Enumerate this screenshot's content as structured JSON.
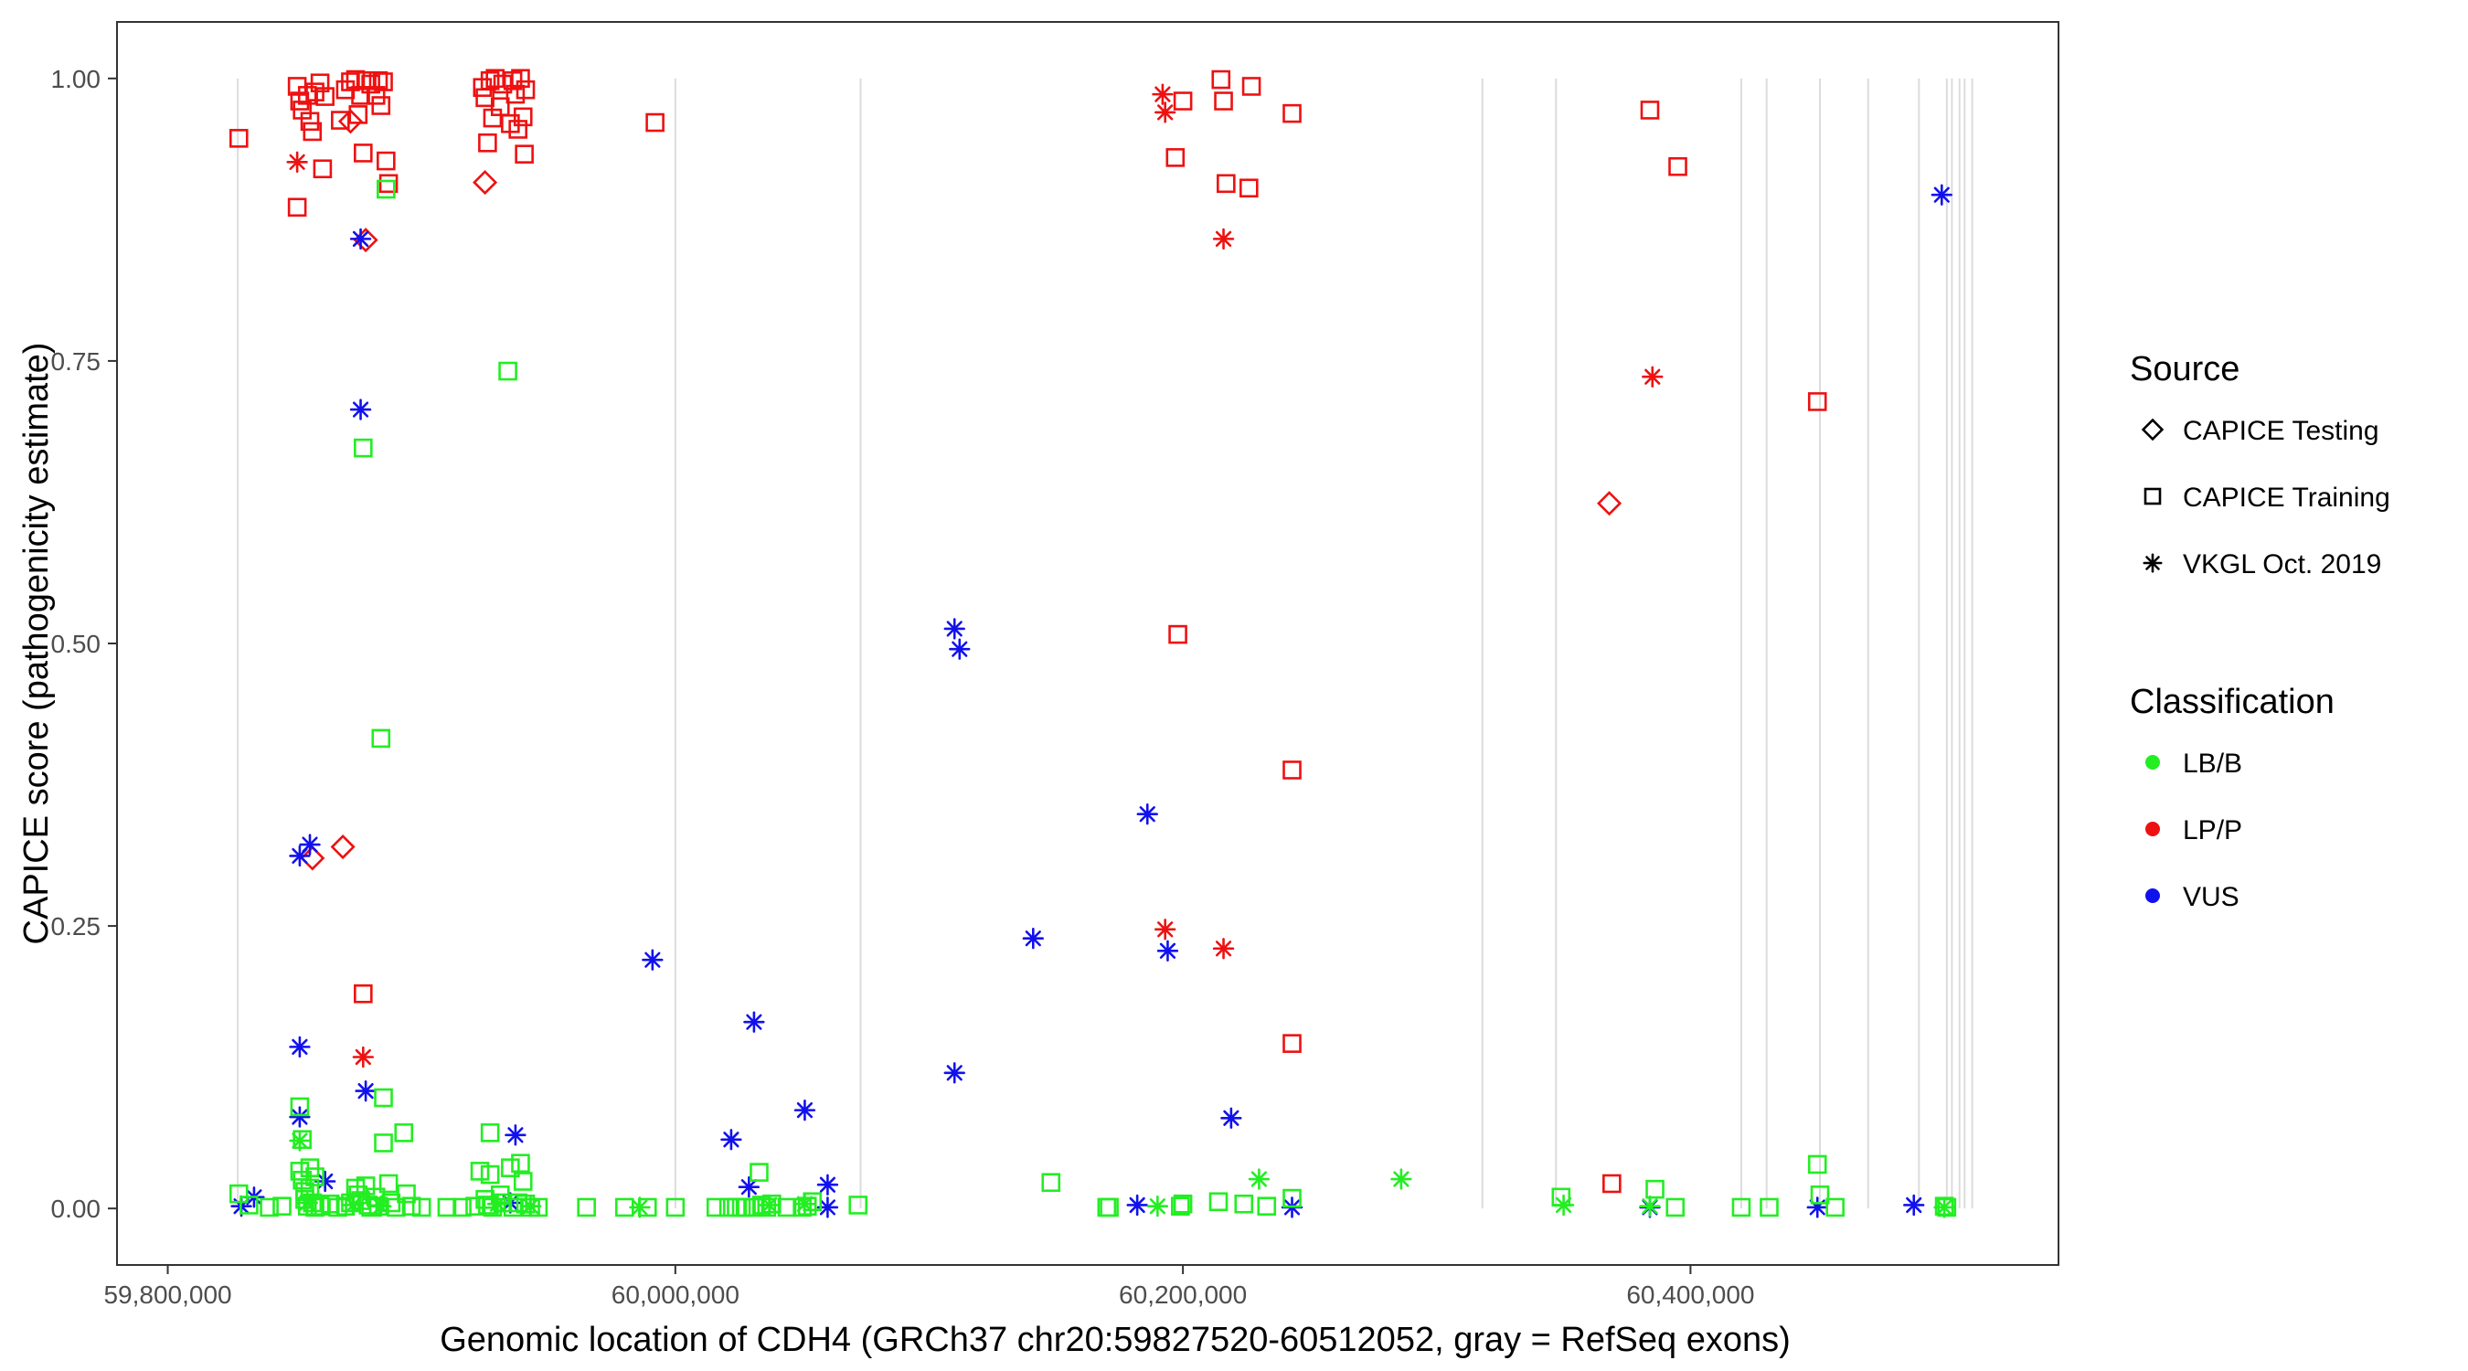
{
  "colors": {
    "LB/B": "#22ee22",
    "LP/P": "#ee1111",
    "VUS": "#1111ee",
    "exon_line": "#dcdcdc",
    "panel_border": "#333333"
  },
  "chart_data": {
    "type": "scatter",
    "xlabel": "Genomic location of CDH4 (GRCh37 chr20:59827520-60512052, gray = RefSeq exons)",
    "ylabel": "CAPICE score (pathogenicity estimate)",
    "xlim": [
      59780000,
      60545000
    ],
    "ylim": [
      -0.05,
      1.05
    ],
    "x_ticks": [
      59800000,
      60000000,
      60200000,
      60400000
    ],
    "x_tick_labels": [
      "59,800,000",
      "60,000,000",
      "60,200,000",
      "60,400,000"
    ],
    "y_ticks": [
      0.0,
      0.25,
      0.5,
      0.75,
      1.0
    ],
    "y_tick_labels": [
      "0.00",
      "0.25",
      "0.50",
      "0.75",
      "1.00"
    ],
    "grid": false,
    "exons": [
      59827600,
      60000000,
      60073000,
      60318000,
      60347000,
      60420000,
      60430000,
      60451000,
      60470000,
      60490000,
      60501000,
      60503000,
      60506000,
      60508000,
      60511000
    ],
    "legend": {
      "source_title": "Source",
      "classification_title": "Classification",
      "position": "right",
      "sources": [
        {
          "key": "testing",
          "label": "CAPICE Testing",
          "shape": "diamond"
        },
        {
          "key": "training",
          "label": "CAPICE Training",
          "shape": "square"
        },
        {
          "key": "vkgl",
          "label": "VKGL Oct. 2019",
          "shape": "asterisk"
        }
      ],
      "classes": [
        {
          "key": "LB/B",
          "label": "LB/B"
        },
        {
          "key": "LP/P",
          "label": "LP/P"
        },
        {
          "key": "VUS",
          "label": "VUS"
        }
      ]
    },
    "series": [
      {
        "source": "training",
        "class": "LP/P",
        "points": [
          [
            59828000,
            0.947
          ],
          [
            59851000,
            0.993
          ],
          [
            59852000,
            0.98
          ],
          [
            59853000,
            0.972
          ],
          [
            59851000,
            0.886
          ],
          [
            59855000,
            0.985
          ],
          [
            59856000,
            0.962
          ],
          [
            59857000,
            0.953
          ],
          [
            59858000,
            0.988
          ],
          [
            59860000,
            0.996
          ],
          [
            59861000,
            0.92
          ],
          [
            59862000,
            0.984
          ],
          [
            59868000,
            0.963
          ],
          [
            59870000,
            0.99
          ],
          [
            59872000,
            0.997
          ],
          [
            59874000,
            0.999
          ],
          [
            59875000,
            0.968
          ],
          [
            59876000,
            0.985
          ],
          [
            59877000,
            0.934
          ],
          [
            59878000,
            0.998
          ],
          [
            59880000,
            0.995
          ],
          [
            59882000,
            0.985
          ],
          [
            59883000,
            0.998
          ],
          [
            59884000,
            0.976
          ],
          [
            59885000,
            0.997
          ],
          [
            59886000,
            0.927
          ],
          [
            59887000,
            0.907
          ],
          [
            59877000,
            0.19
          ],
          [
            59924000,
            0.992
          ],
          [
            59925000,
            0.983
          ],
          [
            59926000,
            0.943
          ],
          [
            59927000,
            0.998
          ],
          [
            59928000,
            0.965
          ],
          [
            59929000,
            1.0
          ],
          [
            59931000,
            0.975
          ],
          [
            59932000,
            0.995
          ],
          [
            59935000,
            0.96
          ],
          [
            59936000,
            0.998
          ],
          [
            59937000,
            0.986
          ],
          [
            59938000,
            0.955
          ],
          [
            59939000,
            1.0
          ],
          [
            59940000,
            0.966
          ],
          [
            59941000,
            0.99
          ],
          [
            59940500,
            0.933
          ],
          [
            59992000,
            0.961
          ],
          [
            60197000,
            0.93
          ],
          [
            60200000,
            0.98
          ],
          [
            60215000,
            0.999
          ],
          [
            60216000,
            0.98
          ],
          [
            60217000,
            0.907
          ],
          [
            60227000,
            0.993
          ],
          [
            60226000,
            0.903
          ],
          [
            60243000,
            0.969
          ],
          [
            60198000,
            0.508
          ],
          [
            60243000,
            0.388
          ],
          [
            60243000,
            0.146
          ],
          [
            60369000,
            0.022
          ],
          [
            60384000,
            0.972
          ],
          [
            60395000,
            0.922
          ],
          [
            60450000,
            0.714
          ]
        ]
      },
      {
        "source": "testing",
        "class": "LP/P",
        "points": [
          [
            59872000,
            0.962
          ],
          [
            59878000,
            0.857
          ],
          [
            59925000,
            0.908
          ],
          [
            59869000,
            0.32
          ],
          [
            59857000,
            0.31
          ],
          [
            60368000,
            0.624
          ]
        ]
      },
      {
        "source": "vkgl",
        "class": "LP/P",
        "points": [
          [
            59851000,
            0.926
          ],
          [
            60192000,
            0.986
          ],
          [
            60193000,
            0.97
          ],
          [
            60216000,
            0.858
          ],
          [
            59877000,
            0.134
          ],
          [
            60193000,
            0.247
          ],
          [
            60216000,
            0.23
          ],
          [
            60385000,
            0.736
          ]
        ]
      },
      {
        "source": "vkgl",
        "class": "VUS",
        "points": [
          [
            59876000,
            0.858
          ],
          [
            59876000,
            0.707
          ],
          [
            59852000,
            0.312
          ],
          [
            59856000,
            0.322
          ],
          [
            59852000,
            0.143
          ],
          [
            59852000,
            0.081
          ],
          [
            59878000,
            0.104
          ],
          [
            59862000,
            0.024
          ],
          [
            59834000,
            0.01
          ],
          [
            59829000,
            0.002
          ],
          [
            59937000,
            0.065
          ],
          [
            59935000,
            0.005
          ],
          [
            59991000,
            0.22
          ],
          [
            60031000,
            0.165
          ],
          [
            60022000,
            0.061
          ],
          [
            60029000,
            0.019
          ],
          [
            60051000,
            0.087
          ],
          [
            60060000,
            0.021
          ],
          [
            60060000,
            0.001
          ],
          [
            60110000,
            0.513
          ],
          [
            60112000,
            0.495
          ],
          [
            60110000,
            0.12
          ],
          [
            60141000,
            0.239
          ],
          [
            60186000,
            0.349
          ],
          [
            60194000,
            0.228
          ],
          [
            60219000,
            0.08
          ],
          [
            60182000,
            0.003
          ],
          [
            60243000,
            0.001
          ],
          [
            60384000,
            0.001
          ],
          [
            60450000,
            0.001
          ],
          [
            60488000,
            0.003
          ],
          [
            60499000,
            0.897
          ]
        ]
      },
      {
        "source": "vkgl",
        "class": "LB/B",
        "points": [
          [
            59852000,
            0.06
          ],
          [
            59855000,
            0.005
          ],
          [
            59873000,
            0.003
          ],
          [
            59884000,
            0.002
          ],
          [
            59930000,
            0.004
          ],
          [
            59943000,
            0.002
          ],
          [
            59986000,
            0.001
          ],
          [
            60037000,
            0.003
          ],
          [
            60051000,
            0.004
          ],
          [
            60190000,
            0.002
          ],
          [
            60230000,
            0.026
          ],
          [
            60286000,
            0.026
          ],
          [
            60350000,
            0.003
          ],
          [
            60384000,
            0.002
          ],
          [
            60500000,
            0.001
          ]
        ]
      },
      {
        "source": "training",
        "class": "LB/B",
        "points": [
          [
            59828000,
            0.013
          ],
          [
            59832000,
            0.003
          ],
          [
            59840000,
            0.001
          ],
          [
            59845000,
            0.002
          ],
          [
            59852000,
            0.09
          ],
          [
            59853000,
            0.061
          ],
          [
            59852000,
            0.033
          ],
          [
            59853000,
            0.025
          ],
          [
            59854000,
            0.015
          ],
          [
            59854000,
            0.008
          ],
          [
            59855000,
            0.002
          ],
          [
            59856000,
            0.036
          ],
          [
            59856000,
            0.018
          ],
          [
            59857000,
            0.005
          ],
          [
            59858000,
            0.001
          ],
          [
            59858000,
            0.028
          ],
          [
            59860000,
            0.002
          ],
          [
            59864000,
            0.004
          ],
          [
            59867000,
            0.001
          ],
          [
            59870000,
            0.002
          ],
          [
            59872000,
            0.005
          ],
          [
            59874000,
            0.018
          ],
          [
            59875000,
            0.012
          ],
          [
            59876000,
            0.007
          ],
          [
            59877000,
            0.673
          ],
          [
            59878000,
            0.02
          ],
          [
            59879000,
            0.003
          ],
          [
            59880000,
            0.001
          ],
          [
            59882000,
            0.01
          ],
          [
            59883000,
            0.002
          ],
          [
            59884000,
            0.416
          ],
          [
            59885000,
            0.098
          ],
          [
            59885000,
            0.058
          ],
          [
            59886000,
            0.902
          ],
          [
            59887000,
            0.022
          ],
          [
            59888000,
            0.005
          ],
          [
            59890000,
            0.001
          ],
          [
            59893000,
            0.067
          ],
          [
            59894000,
            0.013
          ],
          [
            59896000,
            0.002
          ],
          [
            59900000,
            0.001
          ],
          [
            59910000,
            0.001
          ],
          [
            59916000,
            0.001
          ],
          [
            59921000,
            0.002
          ],
          [
            59923000,
            0.033
          ],
          [
            59925000,
            0.008
          ],
          [
            59926000,
            0.003
          ],
          [
            59927000,
            0.067
          ],
          [
            59927000,
            0.03
          ],
          [
            59928000,
            0.001
          ],
          [
            59931000,
            0.012
          ],
          [
            59932000,
            0.005
          ],
          [
            59934000,
            0.741
          ],
          [
            59935000,
            0.036
          ],
          [
            59936000,
            0.001
          ],
          [
            59938000,
            0.005
          ],
          [
            59939000,
            0.04
          ],
          [
            59940000,
            0.024
          ],
          [
            59941000,
            0.004
          ],
          [
            59943000,
            0.001
          ],
          [
            59946000,
            0.001
          ],
          [
            59965000,
            0.001
          ],
          [
            59980000,
            0.001
          ],
          [
            59989000,
            0.001
          ],
          [
            60000000,
            0.001
          ],
          [
            60016000,
            0.001
          ],
          [
            60021000,
            0.001
          ],
          [
            60024000,
            0.001
          ],
          [
            60026000,
            0.001
          ],
          [
            60028000,
            0.001
          ],
          [
            60031000,
            0.001
          ],
          [
            60033000,
            0.032
          ],
          [
            60034000,
            0.003
          ],
          [
            60036000,
            0.001
          ],
          [
            60038000,
            0.004
          ],
          [
            60044000,
            0.001
          ],
          [
            60050000,
            0.001
          ],
          [
            60052000,
            0.002
          ],
          [
            60054000,
            0.006
          ],
          [
            60072000,
            0.003
          ],
          [
            60148000,
            0.023
          ],
          [
            60170000,
            0.001
          ],
          [
            60171000,
            0.001
          ],
          [
            60199000,
            0.002
          ],
          [
            60200000,
            0.004
          ],
          [
            60214000,
            0.006
          ],
          [
            60224000,
            0.004
          ],
          [
            60233000,
            0.002
          ],
          [
            60243000,
            0.009
          ],
          [
            60349000,
            0.01
          ],
          [
            60386000,
            0.017
          ],
          [
            60394000,
            0.001
          ],
          [
            60420000,
            0.001
          ],
          [
            60431000,
            0.001
          ],
          [
            60450000,
            0.039
          ],
          [
            60451000,
            0.012
          ],
          [
            60457000,
            0.001
          ],
          [
            60500000,
            0.002
          ],
          [
            60501000,
            0.001
          ]
        ]
      }
    ]
  }
}
